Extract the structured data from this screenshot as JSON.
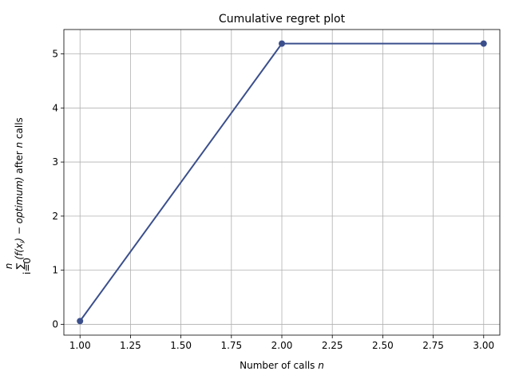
{
  "chart_data": {
    "type": "line",
    "title": "Cumulative regret plot",
    "xlabel": {
      "prefix": "Number of calls ",
      "var": "n"
    },
    "ylabel": {
      "sum_sign": "∑",
      "sum_upper": "n",
      "sum_lower": "i=0",
      "expr": "(f(x",
      "expr_sub": "i",
      "expr_tail": ") − optimum)",
      "after_text": " after ",
      "var": "n",
      "tail_text": " calls"
    },
    "x": [
      1.0,
      2.0,
      3.0
    ],
    "series": [
      {
        "values": [
          0.06,
          5.19,
          5.19
        ],
        "color": "#3b4f8c",
        "marker": "circle"
      }
    ],
    "xlim": [
      0.92,
      3.08
    ],
    "ylim": [
      -0.2,
      5.45
    ],
    "xticks": [
      "1.00",
      "1.25",
      "1.50",
      "1.75",
      "2.00",
      "2.25",
      "2.50",
      "2.75",
      "3.00"
    ],
    "xtick_values": [
      1.0,
      1.25,
      1.5,
      1.75,
      2.0,
      2.25,
      2.5,
      2.75,
      3.0
    ],
    "yticks": [
      "0",
      "1",
      "2",
      "3",
      "4",
      "5"
    ],
    "ytick_values": [
      0,
      1,
      2,
      3,
      4,
      5
    ],
    "grid": true,
    "legend": "none"
  }
}
